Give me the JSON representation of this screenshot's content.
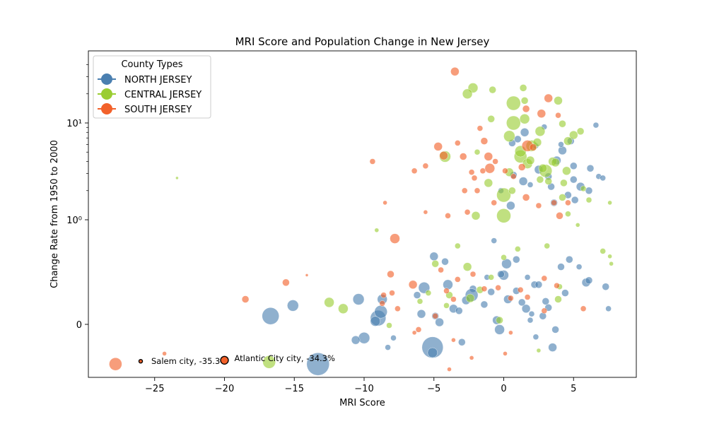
{
  "chart_data": {
    "type": "scatter",
    "title": "MRI Score and Population Change in New Jersey",
    "xlabel": "MRI Score",
    "ylabel": "Change Rate from 1950 to 2000",
    "xlim": [
      -30,
      9.5
    ],
    "yscale": "symlog",
    "x_ticks": [
      -25,
      -20,
      -15,
      -10,
      -5,
      0,
      5
    ],
    "x_tick_labels": [
      "−25",
      "−20",
      "−15",
      "−10",
      "−5",
      "0",
      "5"
    ],
    "y_ticks": [
      0,
      1,
      10
    ],
    "y_tick_labels": [
      "0",
      "10⁰",
      "10¹"
    ],
    "legend": {
      "title": "County Types",
      "position": "upper-left",
      "entries": [
        {
          "name": "NORTH JERSEY",
          "color": "#4a7fb0"
        },
        {
          "name": "CENTRAL JERSEY",
          "color": "#9acd32"
        },
        {
          "name": "SOUTH JERSEY",
          "color": "#f2612a"
        }
      ]
    },
    "series": [
      {
        "name": "NORTH JERSEY",
        "color": "#4a7fb0",
        "points": [
          [
            -13.3,
            -0.38,
            16
          ],
          [
            -16.7,
            0.08,
            12
          ],
          [
            -15.1,
            0.18,
            8
          ],
          [
            -10.4,
            0.24,
            8
          ],
          [
            -9.0,
            0.06,
            11
          ],
          [
            -8.8,
            0.12,
            9
          ],
          [
            -8.7,
            0.24,
            7
          ],
          [
            -9.2,
            0.03,
            7
          ],
          [
            -10.0,
            -0.13,
            8
          ],
          [
            -10.6,
            -0.15,
            6
          ],
          [
            -8.3,
            -0.22,
            4
          ],
          [
            -5.1,
            -0.22,
            15
          ],
          [
            -5.1,
            -0.27,
            7
          ],
          [
            -4.6,
            0.02,
            6
          ],
          [
            -4.0,
            0.38,
            7
          ],
          [
            -3.6,
            0.15,
            6
          ],
          [
            -2.2,
            0.34,
            5
          ],
          [
            -2.3,
            0.28,
            9
          ],
          [
            -2.7,
            0.23,
            6
          ],
          [
            -3.2,
            0.13,
            5
          ],
          [
            -5.7,
            0.35,
            8
          ],
          [
            -5.0,
            0.65,
            6
          ],
          [
            -0.9,
            0.31,
            5
          ],
          [
            -0.5,
            0.04,
            6
          ],
          [
            0.0,
            0.47,
            7
          ],
          [
            0.2,
            0.58,
            7
          ],
          [
            0.9,
            0.62,
            5
          ],
          [
            -0.3,
            -0.05,
            7
          ],
          [
            1.6,
            0.15,
            6
          ],
          [
            1.3,
            0.21,
            5
          ],
          [
            2.2,
            0.38,
            5
          ],
          [
            2.5,
            0.38,
            5
          ],
          [
            1.7,
            0.45,
            4
          ],
          [
            3.5,
            -0.22,
            6
          ],
          [
            3.7,
            -0.05,
            5
          ],
          [
            3.0,
            0.22,
            5
          ],
          [
            4.1,
            0.55,
            5
          ],
          [
            4.7,
            0.62,
            5
          ],
          [
            5.4,
            0.55,
            4
          ],
          [
            5.9,
            0.4,
            6
          ],
          [
            6.1,
            0.42,
            5
          ],
          [
            7.3,
            0.36,
            5
          ],
          [
            7.5,
            0.15,
            4
          ],
          [
            -5.9,
            0.1,
            6
          ],
          [
            -3.0,
            -0.17,
            5
          ],
          [
            2.8,
            0.08,
            5
          ],
          [
            0.5,
            1.4,
            6
          ],
          [
            1.4,
            2.5,
            6
          ],
          [
            2.5,
            3.3,
            6
          ],
          [
            3.2,
            2.8,
            5
          ],
          [
            3.8,
            4.1,
            6
          ],
          [
            4.2,
            5.2,
            6
          ],
          [
            5.0,
            3.6,
            5
          ],
          [
            5.5,
            2.2,
            6
          ],
          [
            5.1,
            1.6,
            5
          ],
          [
            6.1,
            2.0,
            5
          ],
          [
            6.2,
            3.4,
            5
          ],
          [
            6.6,
            9.5,
            4
          ],
          [
            0.6,
            6.2,
            5
          ],
          [
            1.5,
            8.0,
            6
          ],
          [
            2.9,
            9.1,
            4
          ],
          [
            4.1,
            6.0,
            4
          ],
          [
            3.6,
            1.5,
            5
          ],
          [
            4.6,
            1.8,
            5
          ],
          [
            -0.2,
            2.0,
            4
          ],
          [
            0.7,
            2.9,
            5
          ],
          [
            1.9,
            2.3,
            4
          ],
          [
            -4.2,
            0.6,
            5
          ],
          [
            -1.2,
            0.45,
            4
          ],
          [
            -0.2,
            0.48,
            5
          ],
          [
            0.9,
            0.32,
            5
          ],
          [
            2.0,
            0.1,
            4
          ],
          [
            3.2,
            0.16,
            5
          ],
          [
            4.4,
            0.3,
            5
          ],
          [
            -7.9,
            -0.13,
            4
          ],
          [
            -6.2,
            0.28,
            5
          ],
          [
            1.9,
            0.04,
            4
          ],
          [
            2.3,
            -0.12,
            4
          ],
          [
            5.0,
            2.6,
            5
          ],
          [
            6.8,
            2.8,
            4
          ],
          [
            3.4,
            2.2,
            5
          ],
          [
            4.8,
            6.5,
            5
          ],
          [
            1.0,
            6.8,
            5
          ],
          [
            2.3,
            5.8,
            4
          ],
          [
            0.3,
            0.24,
            6
          ],
          [
            -1.4,
            0.19,
            5
          ],
          [
            -4.9,
            0.08,
            5
          ],
          [
            -0.7,
            0.8,
            4
          ],
          [
            7.1,
            2.7,
            4
          ]
        ]
      },
      {
        "name": "CENTRAL JERSEY",
        "color": "#9acd32",
        "points": [
          [
            -16.8,
            -0.36,
            9
          ],
          [
            -12.5,
            0.21,
            7
          ],
          [
            -11.5,
            0.15,
            7
          ],
          [
            -8.2,
            -0.01,
            4
          ],
          [
            -9.1,
            0.9,
            3
          ],
          [
            -23.4,
            2.7,
            2
          ],
          [
            -4.2,
            4.5,
            8
          ],
          [
            -3.9,
            0.28,
            5
          ],
          [
            -3.3,
            0.75,
            4
          ],
          [
            -2.4,
            0.25,
            6
          ],
          [
            -2.0,
            1.1,
            6
          ],
          [
            -2.2,
            23,
            7
          ],
          [
            -2.6,
            20,
            7
          ],
          [
            -0.9,
            11,
            5
          ],
          [
            -0.8,
            22,
            5
          ],
          [
            0.0,
            1.8,
            10
          ],
          [
            0.0,
            1.1,
            10
          ],
          [
            0.7,
            16,
            10
          ],
          [
            0.7,
            10,
            10
          ],
          [
            0.4,
            7.3,
            8
          ],
          [
            1.2,
            4.5,
            9
          ],
          [
            1.7,
            3.8,
            7
          ],
          [
            2.0,
            5.8,
            8
          ],
          [
            2.6,
            8.2,
            7
          ],
          [
            3.0,
            3.2,
            9
          ],
          [
            3.5,
            4.0,
            6
          ],
          [
            4.2,
            9.8,
            5
          ],
          [
            4.6,
            6.5,
            6
          ],
          [
            4.5,
            3.2,
            6
          ],
          [
            5.0,
            7.5,
            6
          ],
          [
            5.5,
            8.2,
            5
          ],
          [
            3.9,
            17,
            6
          ],
          [
            1.4,
            23,
            5
          ],
          [
            1.5,
            17,
            5
          ],
          [
            1.5,
            11,
            7
          ],
          [
            2.4,
            6.3,
            6
          ],
          [
            2.6,
            2.6,
            5
          ],
          [
            3.2,
            2.5,
            5
          ],
          [
            4.3,
            2.4,
            5
          ],
          [
            5.7,
            2.1,
            4
          ],
          [
            6.1,
            1.6,
            4
          ],
          [
            7.6,
            1.5,
            3
          ],
          [
            7.1,
            0.7,
            4
          ],
          [
            7.6,
            0.65,
            3
          ],
          [
            7.7,
            0.58,
            3
          ],
          [
            5.3,
            0.95,
            3
          ],
          [
            4.6,
            1.15,
            4
          ],
          [
            3.1,
            0.75,
            4
          ],
          [
            1.0,
            0.72,
            4
          ],
          [
            0.0,
            0.64,
            4
          ],
          [
            -0.9,
            0.45,
            4
          ],
          [
            -1.7,
            0.33,
            5
          ],
          [
            -2.6,
            0.55,
            6
          ],
          [
            -4.9,
            0.58,
            5
          ],
          [
            -5.4,
            0.3,
            4
          ],
          [
            -6.0,
            0.22,
            4
          ],
          [
            -4.1,
            0.18,
            4
          ],
          [
            -0.3,
            0.04,
            5
          ],
          [
            2.5,
            -0.25,
            3
          ],
          [
            3.9,
            0.24,
            5
          ],
          [
            4.0,
            0.36,
            4
          ],
          [
            -1.1,
            2.4,
            6
          ],
          [
            0.4,
            3.1,
            6
          ],
          [
            1.9,
            4.1,
            6
          ],
          [
            1.2,
            5.1,
            8
          ],
          [
            3.7,
            3.9,
            6
          ],
          [
            4.2,
            1.7,
            5
          ],
          [
            2.8,
            3.4,
            6
          ],
          [
            0.6,
            2.0,
            5
          ],
          [
            -1.9,
            5.0,
            4
          ]
        ]
      },
      {
        "name": "SOUTH JERSEY",
        "color": "#f2612a",
        "points": [
          [
            -27.8,
            -0.38,
            9
          ],
          [
            -24.3,
            -0.28,
            3
          ],
          [
            -18.5,
            0.24,
            5
          ],
          [
            -15.6,
            0.4,
            5
          ],
          [
            -14.1,
            0.47,
            2
          ],
          [
            -7.8,
            0.82,
            7
          ],
          [
            -8.1,
            0.48,
            5
          ],
          [
            -6.5,
            0.38,
            6
          ],
          [
            -8.0,
            0.3,
            4
          ],
          [
            -8.7,
            0.2,
            4
          ],
          [
            -7.6,
            0.15,
            4
          ],
          [
            -6.1,
            -0.05,
            4
          ],
          [
            -9.4,
            4.0,
            4
          ],
          [
            -6.4,
            3.2,
            4
          ],
          [
            -5.6,
            3.6,
            4
          ],
          [
            -8.5,
            1.5,
            3
          ],
          [
            -3.5,
            34,
            6
          ],
          [
            -4.7,
            5.7,
            6
          ],
          [
            -4.3,
            4.6,
            6
          ],
          [
            -2.9,
            4.5,
            5
          ],
          [
            -2.1,
            2.7,
            4
          ],
          [
            -1.5,
            3.2,
            4
          ],
          [
            -1.1,
            4.5,
            6
          ],
          [
            -1.0,
            3.4,
            7
          ],
          [
            -0.6,
            4.0,
            4
          ],
          [
            -1.4,
            6.5,
            5
          ],
          [
            -1.7,
            8.8,
            4
          ],
          [
            -2.3,
            3.1,
            4
          ],
          [
            -2.6,
            1.2,
            4
          ],
          [
            -0.7,
            1.5,
            4
          ],
          [
            0.1,
            3.2,
            4
          ],
          [
            0.7,
            2.8,
            4
          ],
          [
            1.3,
            3.5,
            5
          ],
          [
            1.7,
            5.8,
            8
          ],
          [
            2.1,
            5.6,
            5
          ],
          [
            2.7,
            12.5,
            6
          ],
          [
            1.6,
            14,
            5
          ],
          [
            3.2,
            18,
            6
          ],
          [
            3.9,
            12.0,
            4
          ],
          [
            1.6,
            1.7,
            5
          ],
          [
            2.5,
            1.4,
            4
          ],
          [
            3.6,
            1.5,
            4
          ],
          [
            4.0,
            1.1,
            5
          ],
          [
            4.6,
            1.5,
            4
          ],
          [
            -4.5,
            0.52,
            4
          ],
          [
            -4.1,
            0.32,
            4
          ],
          [
            -3.6,
            0.24,
            4
          ],
          [
            -3.3,
            0.43,
            4
          ],
          [
            -2.2,
            0.48,
            4
          ],
          [
            -1.4,
            0.34,
            4
          ],
          [
            -0.4,
            0.35,
            4
          ],
          [
            0.5,
            0.25,
            4
          ],
          [
            1.2,
            0.33,
            4
          ],
          [
            1.7,
            0.26,
            4
          ],
          [
            2.9,
            0.13,
            4
          ],
          [
            3.8,
            0.37,
            4
          ],
          [
            5.7,
            0.15,
            4
          ],
          [
            -3.9,
            -0.43,
            3
          ],
          [
            -2.3,
            -0.32,
            3
          ],
          [
            0.1,
            -0.28,
            3
          ],
          [
            -8.6,
            0.28,
            4
          ],
          [
            -4.9,
            0.08,
            4
          ],
          [
            -1.9,
            2.0,
            4
          ],
          [
            -3.3,
            6.2,
            4
          ],
          [
            -4.0,
            1.1,
            4
          ],
          [
            -5.6,
            1.2,
            3
          ],
          [
            -2.8,
            2.0,
            4
          ],
          [
            0.5,
            -0.08,
            3
          ],
          [
            2.9,
            0.44,
            4
          ],
          [
            -3.6,
            -0.15,
            3
          ],
          [
            -6.4,
            -0.08,
            3
          ]
        ]
      }
    ],
    "annotations": [
      {
        "text": "Salem city, -35.3%",
        "x": -26.0,
        "y": -0.353
      },
      {
        "text": "Atlantic City city, -34.3%",
        "x": -20.0,
        "y": -0.343
      }
    ]
  }
}
